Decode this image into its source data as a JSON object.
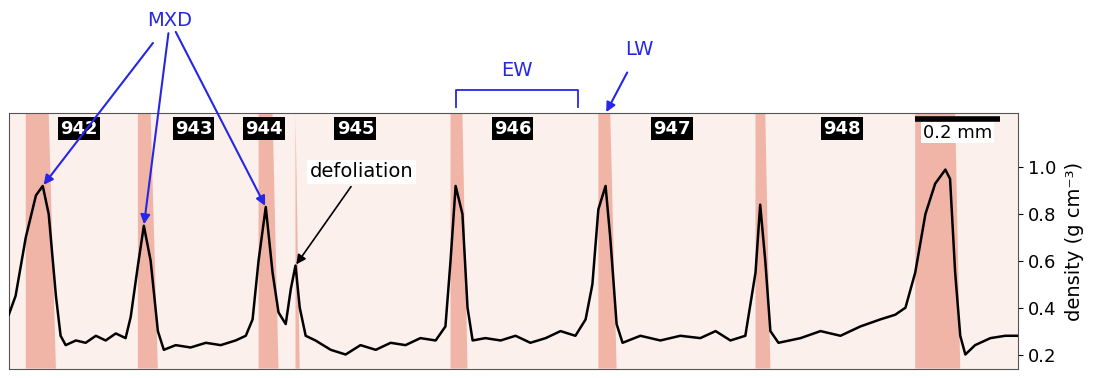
{
  "chart_data": {
    "type": "line",
    "x": [
      0.0,
      0.016,
      0.04,
      0.064,
      0.08,
      0.094,
      0.111,
      0.122,
      0.134,
      0.158,
      0.181,
      0.205,
      0.228,
      0.252,
      0.275,
      0.287,
      0.304,
      0.318,
      0.334,
      0.351,
      0.365,
      0.393,
      0.428,
      0.464,
      0.499,
      0.534,
      0.558,
      0.574,
      0.588,
      0.605,
      0.621,
      0.635,
      0.652,
      0.664,
      0.675,
      0.685,
      0.699,
      0.722,
      0.758,
      0.793,
      0.828,
      0.864,
      0.899,
      0.934,
      0.969,
      1.005,
      1.028,
      1.04,
      1.052,
      1.068,
      1.08,
      1.092,
      1.122,
      1.158,
      1.193,
      1.228,
      1.264,
      1.299,
      1.334,
      1.358,
      1.374,
      1.388,
      1.405,
      1.416,
      1.431,
      1.445,
      1.487,
      1.534,
      1.581,
      1.628,
      1.664,
      1.699,
      1.734,
      1.758,
      1.769,
      1.781,
      1.793,
      1.812,
      1.864,
      1.911,
      1.958,
      2.005,
      2.052,
      2.087,
      2.111,
      2.134,
      2.158,
      2.181,
      2.205,
      2.216,
      2.228,
      2.24,
      2.252,
      2.275,
      2.311,
      2.346,
      2.374
    ],
    "values": [
      0.37,
      0.45,
      0.7,
      0.88,
      0.92,
      0.8,
      0.45,
      0.28,
      0.24,
      0.26,
      0.25,
      0.28,
      0.26,
      0.29,
      0.27,
      0.36,
      0.58,
      0.75,
      0.6,
      0.3,
      0.22,
      0.24,
      0.23,
      0.25,
      0.24,
      0.26,
      0.28,
      0.35,
      0.6,
      0.83,
      0.55,
      0.38,
      0.33,
      0.48,
      0.58,
      0.4,
      0.28,
      0.26,
      0.22,
      0.2,
      0.24,
      0.22,
      0.25,
      0.24,
      0.27,
      0.26,
      0.32,
      0.6,
      0.92,
      0.8,
      0.4,
      0.26,
      0.27,
      0.26,
      0.28,
      0.25,
      0.27,
      0.3,
      0.28,
      0.35,
      0.5,
      0.82,
      0.92,
      0.7,
      0.33,
      0.25,
      0.28,
      0.26,
      0.28,
      0.27,
      0.3,
      0.26,
      0.28,
      0.55,
      0.84,
      0.6,
      0.3,
      0.25,
      0.27,
      0.3,
      0.28,
      0.32,
      0.35,
      0.37,
      0.4,
      0.55,
      0.8,
      0.93,
      0.99,
      0.95,
      0.55,
      0.28,
      0.2,
      0.24,
      0.27,
      0.28,
      0.28
    ],
    "color": "#000000",
    "ylabel": "density (g cm⁻³)",
    "xlim": [
      0,
      2.376
    ],
    "ylim": [
      0.14,
      1.23
    ],
    "yticks": [
      0.2,
      0.4,
      0.6,
      0.8,
      1.0
    ],
    "tick_labels": "y",
    "ring_labels": [
      {
        "label": "942",
        "x": 0.165
      },
      {
        "label": "943",
        "x": 0.435
      },
      {
        "label": "944",
        "x": 0.6
      },
      {
        "label": "945",
        "x": 0.816
      },
      {
        "label": "946",
        "x": 1.186
      },
      {
        "label": "947",
        "x": 1.562
      },
      {
        "label": "948",
        "x": 1.962
      }
    ],
    "ring_label_y": 1.165,
    "scale_bar": {
      "length": 0.2,
      "label": "0.2 mm"
    },
    "annotations": {
      "MXD": {
        "text": "MXD",
        "color": "#2626e6",
        "points": [
          [
            0.08,
            0.92
          ],
          [
            0.318,
            0.75
          ],
          [
            0.605,
            0.83
          ]
        ]
      },
      "EW": {
        "text": "EW",
        "color": "#2626e6",
        "span": [
          1.052,
          1.34
        ]
      },
      "LW": {
        "text": "LW",
        "color": "#2626e6",
        "x": 1.405
      },
      "defoliation": {
        "text": "defoliation",
        "color": "#000000",
        "point": [
          0.675,
          0.58
        ],
        "text_at": [
          0.83,
          0.98
        ]
      }
    }
  }
}
